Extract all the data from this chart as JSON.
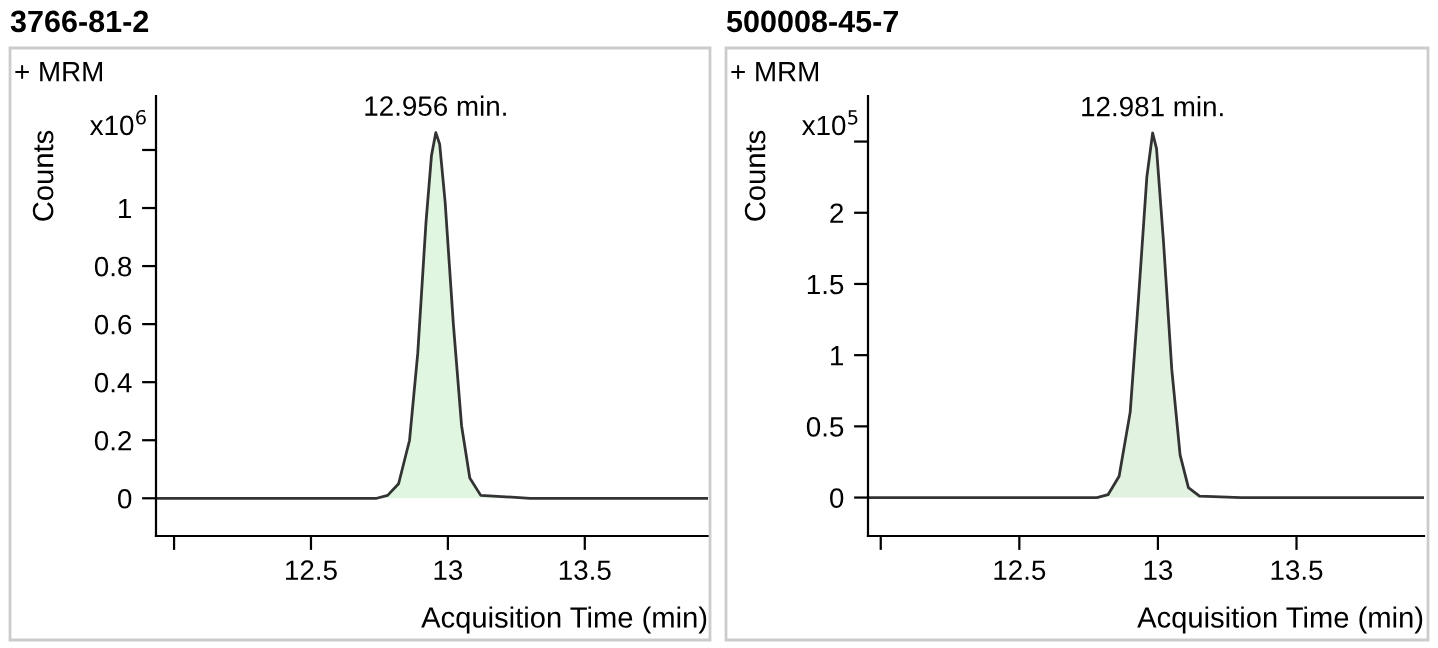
{
  "chart_data": [
    {
      "type": "area",
      "title": "3766-81-2",
      "xlabel": "Acquisition Time (min)",
      "ylabel": "Counts",
      "annotations": [
        "+ MRM",
        "x10$^{6}$",
        {
          "text": "12.956 min.",
          "x": 12.956,
          "y": 1.26
        }
      ],
      "series": [
        {
          "color": "#e0f6e0",
          "x": [
            11.934,
            12.5,
            12.74,
            12.78,
            12.82,
            12.86,
            12.89,
            12.92,
            12.94,
            12.956,
            12.97,
            12.99,
            13.02,
            13.05,
            13.08,
            13.12,
            13.3,
            13.95
          ],
          "values": [
            0,
            0,
            0,
            0.01,
            0.05,
            0.2,
            0.5,
            0.95,
            1.18,
            1.26,
            1.22,
            1.02,
            0.6,
            0.25,
            0.07,
            0.01,
            0,
            0
          ]
        }
      ],
      "xlim": [
        11.934,
        13.95
      ],
      "xticks": [
        {
          "value": 12,
          "label": null
        },
        12.5,
        13,
        13.5
      ],
      "ylim": [
        -0.13,
        1.386
      ],
      "yticks": [
        0,
        0.2,
        0.4,
        0.6,
        0.8,
        1,
        {
          "value": 1.2,
          "label": null
        }
      ],
      "grid": false,
      "legend": false
    },
    {
      "type": "area",
      "title": "500008-45-7",
      "xlabel": "Acquisition Time (min)",
      "ylabel": "Counts",
      "annotations": [
        "+ MRM",
        "x10$^{5}$",
        {
          "text": "12.981 min.",
          "x": 12.981,
          "y": 2.56
        }
      ],
      "series": [
        {
          "color": "#e2f2e0",
          "x": [
            11.954,
            12.5,
            12.78,
            12.82,
            12.86,
            12.9,
            12.93,
            12.96,
            12.981,
            12.995,
            13.02,
            13.05,
            13.08,
            13.11,
            13.15,
            13.3,
            13.96
          ],
          "values": [
            0,
            0,
            0,
            0.02,
            0.15,
            0.6,
            1.4,
            2.25,
            2.56,
            2.45,
            1.8,
            0.9,
            0.3,
            0.07,
            0.01,
            0,
            0
          ]
        }
      ],
      "xlim": [
        11.954,
        13.96
      ],
      "xticks": [
        {
          "value": 12,
          "label": null
        },
        12.5,
        13,
        13.5
      ],
      "ylim": [
        -0.27,
        2.82
      ],
      "yticks": [
        0,
        0.5,
        1,
        1.5,
        2,
        {
          "value": 2.5,
          "label": null
        }
      ],
      "grid": false,
      "legend": false
    }
  ]
}
